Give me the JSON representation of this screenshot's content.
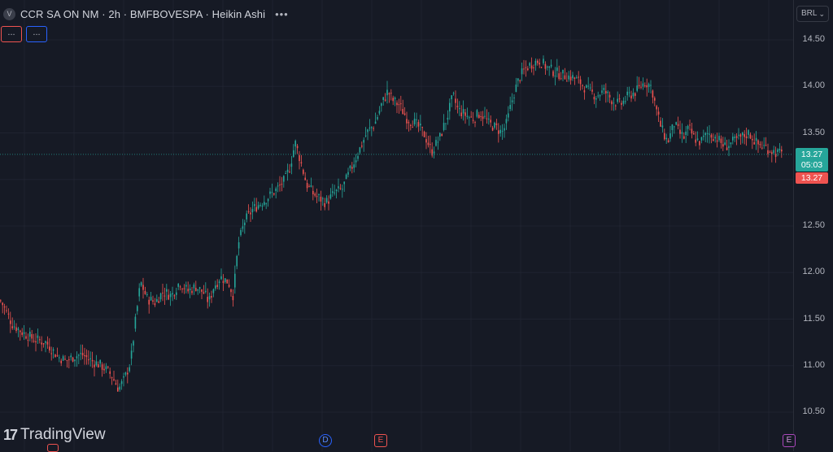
{
  "legend": {
    "logo_letter": "V",
    "title": "CCR SA ON NM · 2h · BMFBOVESPA · Heikin Ashi",
    "more": "•••"
  },
  "indicators": {
    "red_label": "...",
    "blue_label": "..."
  },
  "price_scale": {
    "currency": "BRL",
    "currency_chevron": "⌄",
    "ticks": [
      "14.50",
      "14.00",
      "13.50",
      "13.00",
      "12.50",
      "12.00",
      "11.50",
      "11.00",
      "10.50"
    ],
    "last_price": "13.27",
    "countdown": "05:03",
    "bid_price": "13.27"
  },
  "events": {
    "d_label": "D",
    "e1_label": "E",
    "e2_label": "E"
  },
  "branding": {
    "logo_mark": "17",
    "logo_text": "TradingView"
  },
  "colors": {
    "background": "#161a25",
    "up": "#26a69a",
    "down": "#ef5350",
    "grid": "#1f2330"
  },
  "chart_data": {
    "type": "candlestick",
    "style": "Heikin Ashi",
    "interval": "2h",
    "ylim": [
      10.4,
      14.6
    ],
    "grid": true,
    "last_price": 13.27,
    "x": [
      0,
      14,
      28,
      42,
      56,
      70,
      80,
      90,
      100,
      112,
      124,
      136,
      145,
      152,
      160,
      166,
      172,
      180,
      190,
      200,
      210,
      220,
      230,
      240,
      250,
      256,
      262,
      270,
      280,
      286,
      292,
      300,
      310,
      320,
      330,
      340,
      350,
      356,
      362,
      368,
      376,
      384,
      392,
      400,
      410,
      420,
      430,
      440,
      450,
      460,
      468,
      476,
      482,
      490,
      500,
      510,
      520,
      530,
      540,
      550,
      556,
      562,
      570,
      580,
      590,
      600,
      610,
      616,
      622,
      630,
      638,
      646,
      654,
      662,
      672,
      682,
      692,
      702,
      712,
      722,
      732,
      742,
      752,
      762,
      772,
      782,
      792,
      800,
      806,
      812,
      820,
      828,
      834,
      840,
      846,
      852,
      860,
      870,
      880,
      890,
      900,
      910,
      920,
      930,
      940,
      950,
      960
    ],
    "values": [
      11.7,
      11.45,
      11.35,
      11.28,
      11.25,
      11.1,
      11.05,
      11.1,
      11.12,
      11.05,
      11.0,
      10.9,
      10.75,
      10.85,
      11.05,
      11.5,
      11.9,
      11.72,
      11.68,
      11.8,
      11.75,
      11.9,
      11.8,
      11.85,
      11.78,
      11.68,
      11.85,
      11.95,
      11.9,
      11.75,
      12.3,
      12.55,
      12.68,
      12.75,
      12.82,
      12.9,
      13.0,
      13.15,
      13.4,
      13.22,
      12.95,
      12.85,
      12.8,
      12.75,
      12.85,
      12.9,
      13.1,
      13.3,
      13.5,
      13.6,
      13.8,
      13.95,
      13.85,
      13.8,
      13.65,
      13.6,
      13.5,
      13.3,
      13.45,
      13.7,
      13.9,
      13.75,
      13.7,
      13.65,
      13.72,
      13.6,
      13.55,
      13.5,
      13.6,
      13.9,
      14.1,
      14.2,
      14.25,
      14.28,
      14.2,
      14.15,
      14.12,
      14.1,
      14.05,
      13.95,
      13.9,
      13.95,
      13.85,
      13.8,
      13.9,
      13.95,
      14.05,
      14.0,
      13.75,
      13.55,
      13.4,
      13.6,
      13.5,
      13.45,
      13.55,
      13.45,
      13.4,
      13.5,
      13.45,
      13.35,
      13.4,
      13.45,
      13.5,
      13.38,
      13.35,
      13.3,
      13.27
    ]
  }
}
